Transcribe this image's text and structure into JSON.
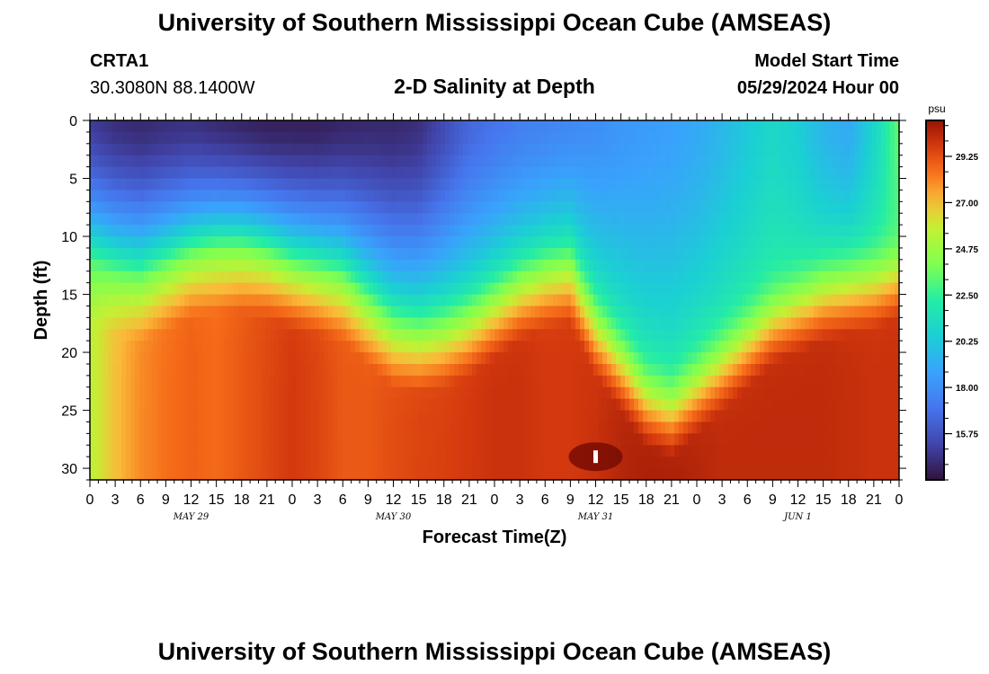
{
  "header": {
    "title": "University of Southern Mississippi Ocean Cube (AMSEAS)",
    "station_id": "CRTA1",
    "station_coords": "30.3080N  88.1400W",
    "chart_title": "2-D Salinity at Depth",
    "model_start_label": "Model Start Time",
    "model_start_value": "05/29/2024 Hour 00"
  },
  "footer": {
    "title": "University of Southern Mississippi Ocean Cube (AMSEAS)"
  },
  "chart_data": {
    "type": "heatmap",
    "title": "2-D Salinity at Depth",
    "xlabel": "Forecast Time(Z)",
    "ylabel": "Depth (ft)",
    "x_hours_range": [
      0,
      96
    ],
    "ylim": [
      0,
      31
    ],
    "x_tick_labels": [
      "0",
      "3",
      "6",
      "9",
      "12",
      "15",
      "18",
      "21",
      "0",
      "3",
      "6",
      "9",
      "12",
      "15",
      "18",
      "21",
      "0",
      "3",
      "6",
      "9",
      "12",
      "15",
      "18",
      "21",
      "0",
      "3",
      "6",
      "9",
      "12",
      "15",
      "18",
      "21",
      "0"
    ],
    "date_labels": [
      {
        "label": "MAY 29",
        "hour": 12
      },
      {
        "label": "MAY 30",
        "hour": 36
      },
      {
        "label": "MAY 31",
        "hour": 60
      },
      {
        "label": "JUN 1",
        "hour": 84
      }
    ],
    "y_ticks": [
      0,
      5,
      10,
      15,
      20,
      25,
      30
    ],
    "colorbar": {
      "unit": "psu",
      "min": 13.5,
      "max": 31.0,
      "ticks": [
        "15.75",
        "18.00",
        "20.25",
        "22.50",
        "24.75",
        "27.00",
        "29.25"
      ],
      "tick_values": [
        15.75,
        18.0,
        20.25,
        22.5,
        24.75,
        27.0,
        29.25
      ]
    },
    "column_hours": [
      0,
      3,
      6,
      9,
      12,
      15,
      18,
      21,
      24,
      27,
      30,
      33,
      36,
      39,
      42,
      45,
      48,
      51,
      54,
      57,
      60,
      63,
      66,
      69,
      72,
      75,
      78,
      81,
      84,
      87,
      90,
      93,
      96
    ],
    "halocline_depth_ft": [
      12.5,
      13.5,
      14,
      13,
      12,
      11.5,
      11.5,
      12,
      13,
      13.5,
      14,
      16,
      18,
      18.5,
      18,
      17,
      15.5,
      14,
      13,
      12.5,
      17,
      20,
      23,
      24,
      22,
      20,
      18,
      16,
      15,
      14,
      13.5,
      13,
      12
    ],
    "surface_salinity_psu": [
      15.0,
      14.5,
      14.3,
      14.5,
      14.6,
      14.4,
      14.2,
      14.0,
      14.0,
      14.0,
      14.2,
      14.3,
      14.3,
      14.5,
      15.5,
      16.5,
      17.0,
      17.4,
      17.6,
      17.8,
      18.0,
      18.3,
      18.5,
      18.7,
      19.0,
      19.6,
      20.3,
      21.0,
      20.5,
      19.5,
      19.0,
      20.8,
      23.5
    ],
    "bottom_salinity_psu": [
      25.5,
      27.0,
      28.0,
      28.5,
      28.8,
      28.6,
      29.0,
      29.4,
      29.8,
      29.5,
      29.0,
      29.0,
      29.3,
      29.5,
      29.6,
      29.8,
      30.0,
      30.0,
      29.8,
      29.8,
      30.0,
      30.4,
      30.6,
      30.6,
      30.4,
      30.2,
      30.2,
      30.2,
      30.2,
      30.2,
      30.1,
      30.0,
      30.0
    ],
    "marker": {
      "hour": 60,
      "depth_ft": 29
    }
  }
}
